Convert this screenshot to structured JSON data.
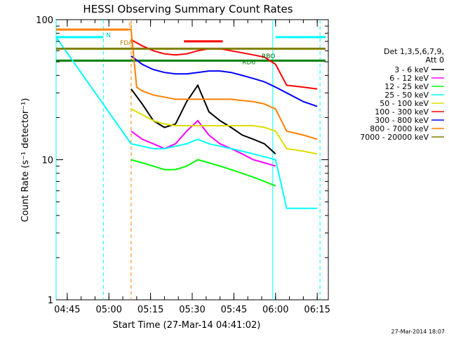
{
  "chart_data": {
    "type": "line",
    "title": "HESSI Observing Summary Count Rates",
    "xlabel": "Start Time (27-Mar-14 04:41:02)",
    "ylabel": "Count Rate (s⁻¹ detector⁻¹)",
    "y_scale": "log",
    "ylim": [
      1,
      100
    ],
    "xlim": [
      "04:41",
      "06:19"
    ],
    "x_ticks": [
      "04:45",
      "05:00",
      "05:15",
      "05:30",
      "05:45",
      "06:00",
      "06:15"
    ],
    "y_ticks": [
      "1",
      "10",
      "100"
    ],
    "grid": false,
    "legend_placement": "right",
    "legend_header": [
      "Det 1,3,5,6,7,9,",
      "Att 0"
    ],
    "series": [
      {
        "name": "3 - 6 keV",
        "color": "#000000",
        "x": [
          "05:08",
          "05:12",
          "05:16",
          "05:20",
          "05:24",
          "05:28",
          "05:32",
          "05:36",
          "05:40",
          "05:44",
          "05:48",
          "05:52",
          "05:56",
          "06:00"
        ],
        "values": [
          32,
          25,
          19,
          17,
          18,
          26,
          34,
          22,
          19,
          17,
          15,
          14,
          13,
          11
        ]
      },
      {
        "name": "6 - 12 keV",
        "color": "#ff00ff",
        "x": [
          "05:08",
          "05:12",
          "05:16",
          "05:20",
          "05:24",
          "05:28",
          "05:32",
          "05:36",
          "05:40",
          "05:44",
          "05:48",
          "05:52",
          "05:56",
          "06:00"
        ],
        "values": [
          16,
          14,
          13,
          12,
          13,
          16,
          19,
          15,
          13,
          12,
          11,
          10,
          9.5,
          9
        ]
      },
      {
        "name": "12 - 25 keV",
        "color": "#00ff00",
        "x": [
          "05:08",
          "05:12",
          "05:16",
          "05:20",
          "05:24",
          "05:28",
          "05:32",
          "05:36",
          "05:40",
          "05:44",
          "05:48",
          "05:52",
          "05:56",
          "06:00"
        ],
        "values": [
          10,
          9.5,
          9,
          8.5,
          8.5,
          9,
          10,
          9.5,
          9,
          8.5,
          8,
          7.5,
          7,
          6.5
        ]
      },
      {
        "name": "25 - 50 keV",
        "color": "#00ffff",
        "x": [
          "04:41",
          "05:08",
          "05:12",
          "05:16",
          "05:20",
          "05:24",
          "05:28",
          "05:32",
          "05:36",
          "05:40",
          "05:44",
          "05:48",
          "05:52",
          "05:56",
          "06:00",
          "06:04",
          "06:10",
          "06:15"
        ],
        "values": [
          75,
          13,
          12.5,
          12,
          12,
          12.5,
          13,
          14,
          13,
          12.5,
          12,
          11.5,
          11,
          10.5,
          10,
          4.5,
          4.5,
          4.5
        ]
      },
      {
        "name": "50 - 100 keV",
        "color": "#dddd00",
        "x": [
          "05:08",
          "05:12",
          "05:16",
          "05:20",
          "05:24",
          "05:28",
          "05:32",
          "05:36",
          "05:40",
          "05:44",
          "05:48",
          "05:52",
          "05:56",
          "06:00",
          "06:04",
          "06:10",
          "06:15"
        ],
        "values": [
          23,
          21,
          19,
          18,
          17.5,
          17.5,
          17.5,
          17.5,
          17.5,
          17.5,
          17.5,
          17.5,
          17,
          16,
          12,
          11.5,
          11
        ]
      },
      {
        "name": "100 - 300 keV",
        "color": "#ff0000",
        "x": [
          "05:08",
          "05:12",
          "05:16",
          "05:20",
          "05:24",
          "05:28",
          "05:32",
          "05:36",
          "05:40",
          "05:44",
          "05:48",
          "05:52",
          "05:56",
          "06:00",
          "06:04",
          "06:10",
          "06:15"
        ],
        "values": [
          72,
          65,
          60,
          57,
          56,
          57,
          60,
          62,
          62,
          60,
          58,
          56,
          54,
          48,
          34,
          33,
          32
        ]
      },
      {
        "name": "300 - 800 keV",
        "color": "#0000ff",
        "x": [
          "05:08",
          "05:12",
          "05:16",
          "05:20",
          "05:24",
          "05:28",
          "05:32",
          "05:36",
          "05:40",
          "05:44",
          "05:48",
          "05:52",
          "05:56",
          "06:00",
          "06:04",
          "06:10",
          "06:15"
        ],
        "values": [
          55,
          48,
          44,
          42,
          41,
          41,
          42,
          43,
          43,
          42,
          40,
          38,
          36,
          33,
          30,
          26,
          24
        ]
      },
      {
        "name": "800 - 7000 keV",
        "color": "#ff8000",
        "x": [
          "04:41",
          "05:08",
          "05:10",
          "05:12",
          "05:16",
          "05:20",
          "05:24",
          "05:28",
          "05:32",
          "05:36",
          "05:40",
          "05:44",
          "05:48",
          "05:52",
          "05:56",
          "06:00",
          "06:04",
          "06:10",
          "06:15"
        ],
        "values": [
          85,
          85,
          33,
          31,
          29,
          28,
          27,
          27,
          27,
          27,
          27,
          27,
          26.5,
          26,
          25,
          23,
          16,
          15,
          14
        ]
      },
      {
        "name": "7000 - 20000 keV",
        "color": "#808000",
        "x": [
          "04:41",
          "05:00",
          "05:15",
          "05:30",
          "05:45",
          "06:00",
          "06:15"
        ],
        "values": [
          62,
          62,
          62,
          62,
          62,
          62,
          62
        ]
      }
    ],
    "markers": [
      {
        "label": "N",
        "color": "#00c8c8",
        "x": "04:59"
      },
      {
        "label": "S",
        "color": "#ff7f00",
        "x": "05:07"
      },
      {
        "label": "FDA",
        "color": "#c08000",
        "x": "05:04"
      },
      {
        "label": "RD6",
        "color": "#008000",
        "x": "05:48"
      },
      {
        "label": "RBO",
        "color": "#006000",
        "x": "05:55"
      }
    ],
    "vertical_lines": [
      {
        "x": "04:41",
        "color": "#00ffff",
        "style": "solid"
      },
      {
        "x": "04:58",
        "color": "#00ffff",
        "style": "dashed"
      },
      {
        "x": "05:08",
        "color": "#ff8000",
        "style": "dashed"
      },
      {
        "x": "05:59",
        "color": "#00ffff",
        "style": "solid"
      },
      {
        "x": "06:16",
        "color": "#00ffff",
        "style": "dashed"
      }
    ],
    "flags": [
      {
        "color": "#ff8000",
        "from": "04:41",
        "to": "05:07",
        "value": 85
      },
      {
        "color": "#00ffff",
        "from": "04:41",
        "to": "04:58",
        "value": 75
      },
      {
        "color": "#808000",
        "from": "04:41",
        "to": "06:18",
        "value": 62
      },
      {
        "color": "#008000",
        "from": "04:41",
        "to": "06:18",
        "value": 51
      },
      {
        "color": "#ff0000",
        "from": "05:27",
        "to": "05:41",
        "value": 70
      },
      {
        "color": "#00ffff",
        "from": "06:00",
        "to": "06:18",
        "value": 75
      }
    ]
  },
  "footer": {
    "timestamp": "27-Mar-2014 18:07"
  }
}
